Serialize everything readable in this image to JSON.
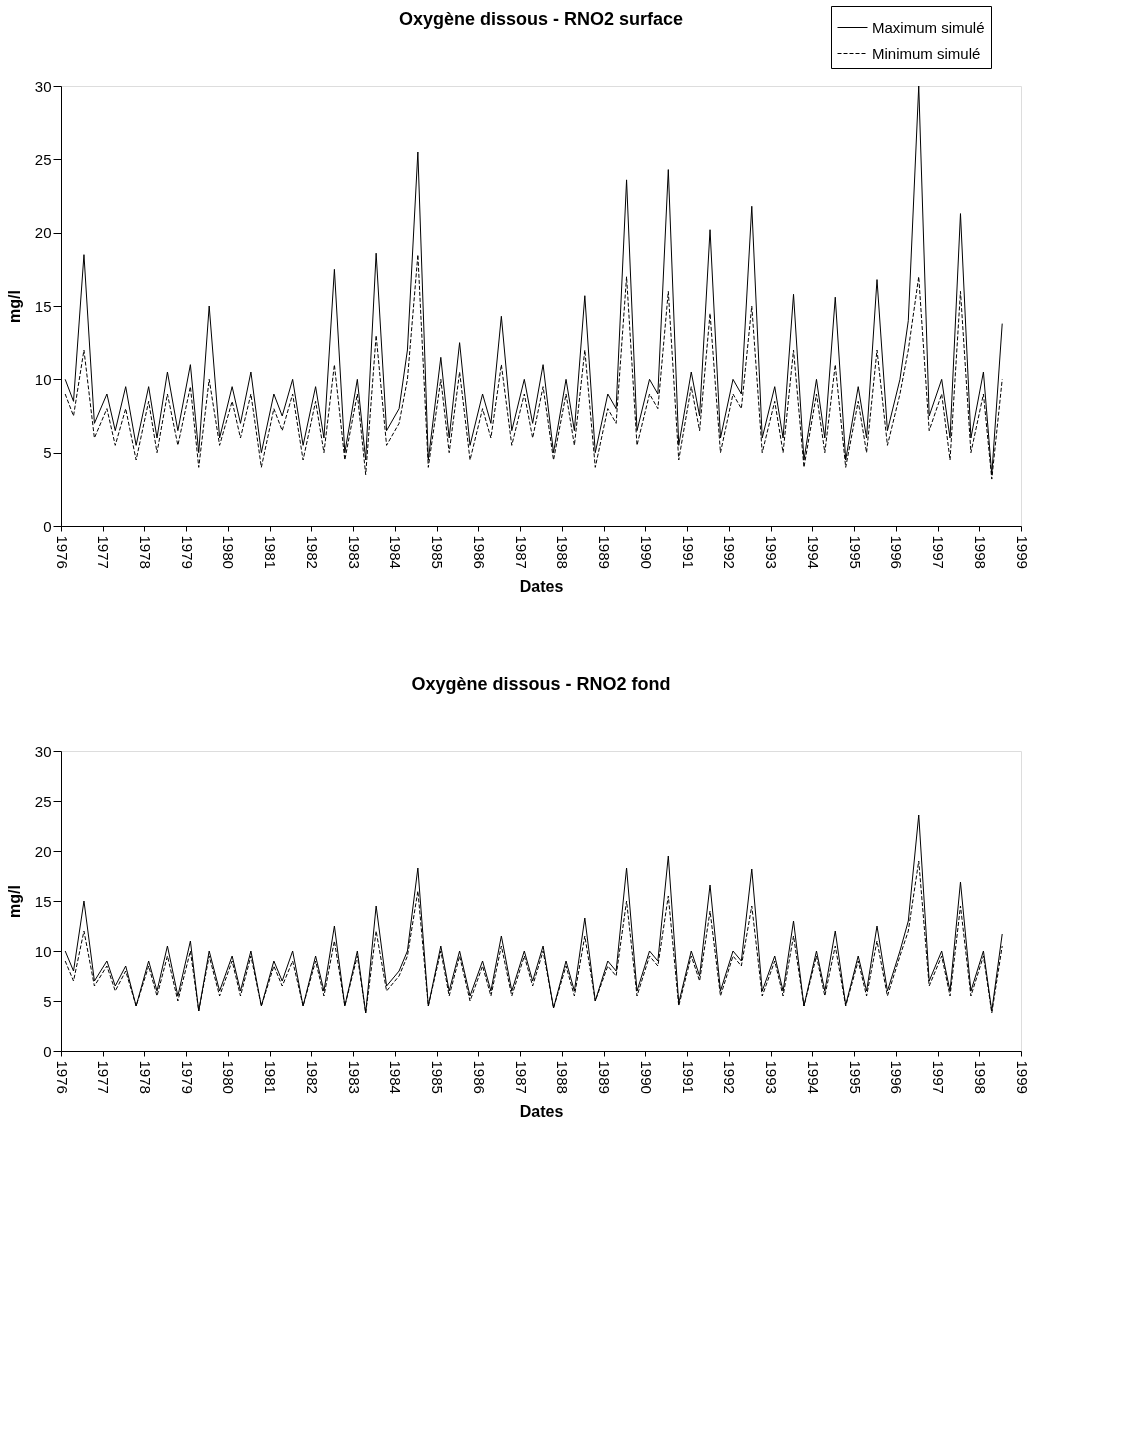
{
  "chart_data": [
    {
      "type": "line",
      "title": "Oxygène dissous - RNO2 surface",
      "xlabel": "Dates",
      "ylabel": "mg/l",
      "x": [
        1976.1,
        1976.3,
        1976.55,
        1976.8,
        1977.1,
        1977.3,
        1977.55,
        1977.8,
        1978.1,
        1978.3,
        1978.55,
        1978.8,
        1979.1,
        1979.3,
        1979.55,
        1979.8,
        1980.1,
        1980.3,
        1980.55,
        1980.8,
        1981.1,
        1981.3,
        1981.55,
        1981.8,
        1982.1,
        1982.3,
        1982.55,
        1982.8,
        1983.1,
        1983.3,
        1983.55,
        1983.8,
        1984.1,
        1984.3,
        1984.55,
        1984.8,
        1985.1,
        1985.3,
        1985.55,
        1985.8,
        1986.1,
        1986.3,
        1986.55,
        1986.8,
        1987.1,
        1987.3,
        1987.55,
        1987.8,
        1988.1,
        1988.3,
        1988.55,
        1988.8,
        1989.1,
        1989.3,
        1989.55,
        1989.8,
        1990.1,
        1990.3,
        1990.55,
        1990.8,
        1991.1,
        1991.3,
        1991.55,
        1991.8,
        1992.1,
        1992.3,
        1992.55,
        1992.8,
        1993.1,
        1993.3,
        1993.55,
        1993.8,
        1994.1,
        1994.3,
        1994.55,
        1994.8,
        1995.1,
        1995.3,
        1995.55,
        1995.8,
        1996.1,
        1996.3,
        1996.55,
        1996.8,
        1997.1,
        1997.3,
        1997.55,
        1997.8,
        1998.1,
        1998.3,
        1998.55
      ],
      "series": [
        {
          "name": "Maximum simulé",
          "color": "#000000",
          "line_style": "solid",
          "values": [
            10,
            8.5,
            18.5,
            7,
            9,
            6.5,
            9.5,
            5.5,
            9.5,
            6,
            10.5,
            6.5,
            11,
            5,
            15,
            6,
            9.5,
            7,
            10.5,
            5,
            9,
            7.5,
            10,
            5.5,
            9.5,
            6,
            17.5,
            5,
            10,
            4.5,
            18.6,
            6.5,
            8,
            12,
            25.5,
            4.5,
            11.5,
            6,
            12.5,
            5.5,
            9,
            7,
            14.3,
            6.5,
            10,
            7,
            11,
            5,
            10,
            6.5,
            15.7,
            5,
            9,
            8,
            23.6,
            6.5,
            10,
            9,
            24.3,
            5.5,
            10.5,
            7.5,
            20.2,
            6,
            10,
            9,
            21.8,
            6,
            9.5,
            6,
            15.8,
            4.5,
            10,
            6,
            15.6,
            4.5,
            9.5,
            6,
            16.8,
            6.5,
            10,
            14,
            30,
            7.5,
            10,
            6,
            21.3,
            6,
            10.5,
            3.5,
            13.8
          ]
        },
        {
          "name": "Minimum simulé",
          "color": "#000000",
          "line_style": "dashed",
          "values": [
            9,
            7.5,
            12,
            6,
            8,
            5.5,
            8,
            4.5,
            8.5,
            5,
            9,
            5.5,
            9.5,
            4,
            10,
            5.5,
            8.5,
            6,
            9,
            4,
            8,
            6.5,
            9,
            4.5,
            8.5,
            5,
            11,
            4.5,
            9,
            3.5,
            13,
            5.5,
            7,
            10,
            18.5,
            4,
            10,
            5,
            10.5,
            4.5,
            8,
            6,
            11,
            5.5,
            9,
            6,
            9.5,
            4.5,
            9,
            5.5,
            12,
            4,
            8,
            7,
            17,
            5.5,
            9,
            8,
            16,
            4.5,
            9.5,
            6.5,
            14.5,
            5,
            9,
            8,
            15,
            5,
            8.5,
            5,
            12,
            4,
            9,
            5,
            11,
            4,
            8.5,
            5,
            12,
            5.5,
            9,
            12,
            17,
            6.5,
            9,
            4.5,
            16,
            5,
            9,
            3.2,
            10
          ]
        }
      ],
      "xlim": [
        1976,
        1999
      ],
      "xticks": [
        1976,
        1977,
        1978,
        1979,
        1980,
        1981,
        1982,
        1983,
        1984,
        1985,
        1986,
        1987,
        1988,
        1989,
        1990,
        1991,
        1992,
        1993,
        1994,
        1995,
        1996,
        1997,
        1998,
        1999
      ],
      "ylim": [
        0,
        30
      ],
      "yticks": [
        0,
        5,
        10,
        15,
        20,
        25,
        30
      ],
      "legend": "top right"
    },
    {
      "type": "line",
      "title": "Oxygène dissous - RNO2 fond",
      "xlabel": "Dates",
      "ylabel": "mg/l",
      "x": [
        1976.1,
        1976.3,
        1976.55,
        1976.8,
        1977.1,
        1977.3,
        1977.55,
        1977.8,
        1978.1,
        1978.3,
        1978.55,
        1978.8,
        1979.1,
        1979.3,
        1979.55,
        1979.8,
        1980.1,
        1980.3,
        1980.55,
        1980.8,
        1981.1,
        1981.3,
        1981.55,
        1981.8,
        1982.1,
        1982.3,
        1982.55,
        1982.8,
        1983.1,
        1983.3,
        1983.55,
        1983.8,
        1984.1,
        1984.3,
        1984.55,
        1984.8,
        1985.1,
        1985.3,
        1985.55,
        1985.8,
        1986.1,
        1986.3,
        1986.55,
        1986.8,
        1987.1,
        1987.3,
        1987.55,
        1987.8,
        1988.1,
        1988.3,
        1988.55,
        1988.8,
        1989.1,
        1989.3,
        1989.55,
        1989.8,
        1990.1,
        1990.3,
        1990.55,
        1990.8,
        1991.1,
        1991.3,
        1991.55,
        1991.8,
        1992.1,
        1992.3,
        1992.55,
        1992.8,
        1993.1,
        1993.3,
        1993.55,
        1993.8,
        1994.1,
        1994.3,
        1994.55,
        1994.8,
        1995.1,
        1995.3,
        1995.55,
        1995.8,
        1996.1,
        1996.3,
        1996.55,
        1996.8,
        1997.1,
        1997.3,
        1997.55,
        1997.8,
        1998.1,
        1998.3,
        1998.55
      ],
      "series": [
        {
          "name": "Maximum simulé",
          "color": "#000000",
          "line_style": "solid",
          "values": [
            10,
            8,
            15,
            7,
            9,
            6.5,
            8.5,
            4.5,
            9,
            6,
            10.5,
            5.5,
            11,
            4,
            10,
            6,
            9.5,
            6,
            10,
            4.5,
            9,
            7,
            10,
            4.5,
            9.5,
            6,
            12.5,
            4.5,
            10,
            3.8,
            14.5,
            6.5,
            8,
            10,
            18.3,
            4.5,
            10.5,
            6,
            10,
            5.5,
            9,
            6,
            11.5,
            6,
            10,
            7,
            10.5,
            4.3,
            9,
            6,
            13.3,
            5,
            9,
            8,
            18.3,
            6,
            10,
            9,
            19.5,
            4.8,
            10,
            7.5,
            16.6,
            6,
            10,
            9,
            18.2,
            6,
            9.5,
            6,
            13,
            4.5,
            10,
            6,
            12,
            4.6,
            9.5,
            6,
            12.5,
            6,
            10,
            13,
            23.6,
            7,
            10,
            6,
            16.9,
            6,
            10,
            4,
            11.7
          ]
        },
        {
          "name": "Minimum simulé",
          "color": "#000000",
          "line_style": "dashed",
          "values": [
            9,
            7,
            12,
            6.5,
            8.5,
            6,
            8,
            4.5,
            8.5,
            5.5,
            9.5,
            5,
            10,
            4,
            9.5,
            5.5,
            9,
            5.5,
            9.5,
            4.5,
            8.5,
            6.5,
            9,
            4.5,
            9,
            5.5,
            11,
            4.5,
            9.5,
            3.8,
            12,
            6,
            7.5,
            9.5,
            16,
            4.5,
            10,
            5.5,
            9.5,
            5,
            8.5,
            5.5,
            10.5,
            5.5,
            9.5,
            6.5,
            10,
            4.3,
            8.5,
            5.5,
            11.5,
            5,
            8.5,
            7.5,
            15,
            5.5,
            9.5,
            8.5,
            15.5,
            4.5,
            9.5,
            7,
            14,
            5.5,
            9.5,
            8.5,
            14.5,
            5.5,
            9,
            5.5,
            11.5,
            4.5,
            9.5,
            5.5,
            10.5,
            4.5,
            9,
            5.5,
            11,
            5.5,
            9.5,
            12,
            19,
            6.5,
            9.5,
            5.5,
            14.5,
            5.5,
            9.5,
            3.8,
            10.5
          ]
        }
      ],
      "xlim": [
        1976,
        1999
      ],
      "xticks": [
        1976,
        1977,
        1978,
        1979,
        1980,
        1981,
        1982,
        1983,
        1984,
        1985,
        1986,
        1987,
        1988,
        1989,
        1990,
        1991,
        1992,
        1993,
        1994,
        1995,
        1996,
        1997,
        1998,
        1999
      ],
      "ylim": [
        0,
        30
      ],
      "yticks": [
        0,
        5,
        10,
        15,
        20,
        25,
        30
      ],
      "legend": "top right"
    }
  ]
}
